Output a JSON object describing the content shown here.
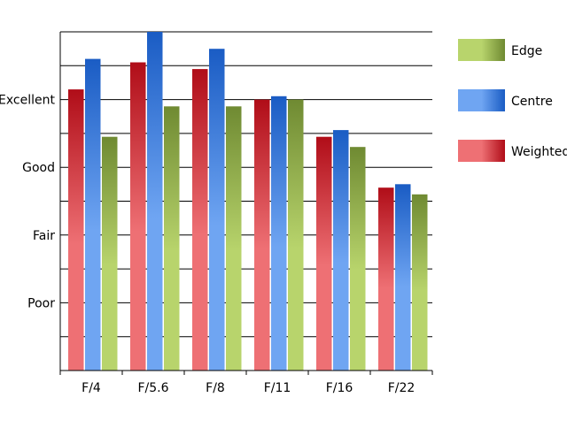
{
  "chart_data": {
    "type": "bar",
    "categories": [
      "F/4",
      "F/5.6",
      "F/8",
      "F/11",
      "F/16",
      "F/22"
    ],
    "y_tick_labels": [
      {
        "label": "Poor",
        "value": 2
      },
      {
        "label": "Fair",
        "value": 4
      },
      {
        "label": "Good",
        "value": 6
      },
      {
        "label": "Excellent",
        "value": 8
      }
    ],
    "ylim": [
      0,
      10
    ],
    "grid": true,
    "legend_position": "right",
    "series": [
      {
        "name": "Weighted",
        "values": [
          8.3,
          9.1,
          8.9,
          8.0,
          6.9,
          5.4
        ],
        "colors": {
          "light": "#ee7074",
          "dark": "#b00d18"
        }
      },
      {
        "name": "Centre",
        "values": [
          9.2,
          10.0,
          9.5,
          8.1,
          7.1,
          5.5
        ],
        "colors": {
          "light": "#6fa5f2",
          "dark": "#1a5cc4"
        }
      },
      {
        "name": "Edge",
        "values": [
          6.9,
          7.8,
          7.8,
          8.0,
          6.6,
          5.2
        ],
        "colors": {
          "light": "#b8d46c",
          "dark": "#6f8a32"
        }
      }
    ],
    "legend_order": [
      "Edge",
      "Centre",
      "Weighted"
    ]
  }
}
